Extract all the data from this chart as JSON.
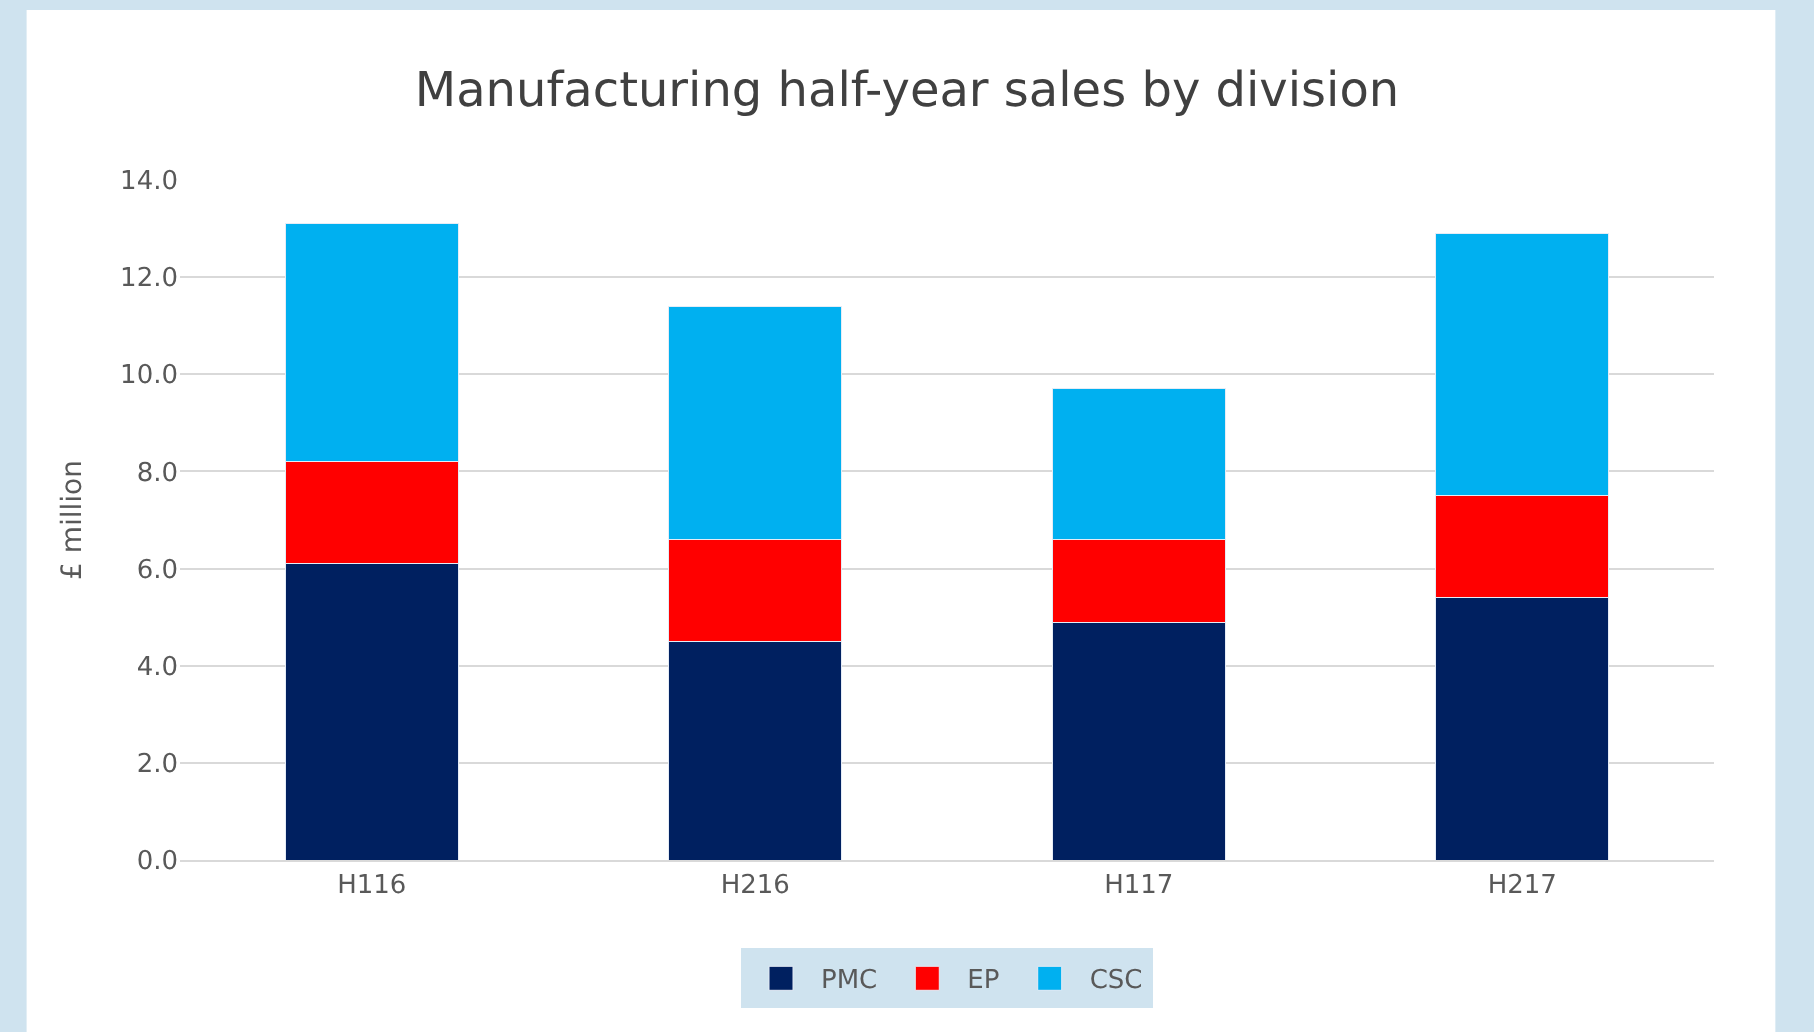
{
  "chart_data": {
    "type": "bar",
    "title": "Manufacturing half-year sales by division",
    "ylabel": "£ million",
    "categories": [
      "H116",
      "H216",
      "H117",
      "H217"
    ],
    "stacked": true,
    "series": [
      {
        "name": "PMC",
        "color": "#002060",
        "values": [
          6.1,
          4.5,
          4.9,
          5.4
        ]
      },
      {
        "name": "EP",
        "color": "#ff0000",
        "values": [
          2.1,
          2.1,
          1.7,
          2.1
        ]
      },
      {
        "name": "CSC",
        "color": "#00b0f0",
        "values": [
          4.9,
          4.8,
          3.1,
          5.4
        ]
      }
    ],
    "ylim": [
      0,
      14
    ],
    "yticks": [
      {
        "value": 0,
        "label": "0.0"
      },
      {
        "value": 2,
        "label": "2.0"
      },
      {
        "value": 4,
        "label": "4.0"
      },
      {
        "value": 6,
        "label": "6.0"
      },
      {
        "value": 8,
        "label": "8.0"
      },
      {
        "value": 10,
        "label": "10.0"
      },
      {
        "value": 12,
        "label": "12.0"
      },
      {
        "value": 14,
        "label": "14.0"
      }
    ],
    "grid": "y",
    "legend": "bottom"
  }
}
